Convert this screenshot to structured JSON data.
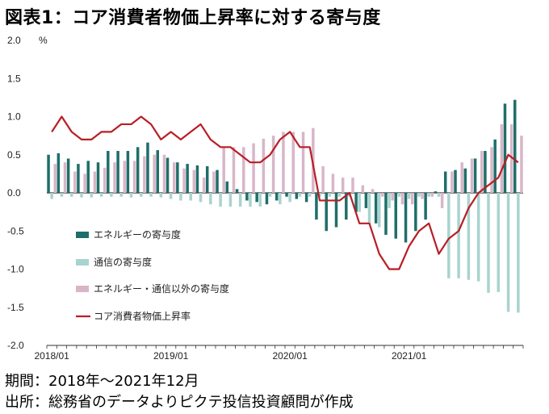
{
  "title": "図表1：コア消費者物価上昇率に対する寄与度",
  "footer": {
    "period": "期間：2018年～2021年12月",
    "source": "出所：総務省のデータよりピクテ投信投資顧問が作成"
  },
  "chart_data": {
    "type": "bar+line",
    "title": "図表1：コア消費者物価上昇率に対する寄与度",
    "ylabel": "%",
    "ylim": [
      -2.0,
      2.0
    ],
    "yticks": [
      "2.0",
      "1.5",
      "1.0",
      "0.5",
      "0.0",
      "-0.5",
      "-1.0",
      "-1.5",
      "-2.0"
    ],
    "x_tick_labels": [
      "2018/01",
      "2019/01",
      "2020/01",
      "2021/01"
    ],
    "x_tick_months": [
      0,
      12,
      24,
      36
    ],
    "months": 48,
    "legend": [
      "エネルギーの寄与度",
      "通信の寄与度",
      "エネルギー・通信以外の寄与度",
      "コア消費者物価上昇率"
    ],
    "colors": {
      "energy": "#1f6e6a",
      "telecom": "#a9d3cf",
      "other": "#d8b6c8",
      "core": "#b81e26",
      "axis": "#333333"
    },
    "series": [
      {
        "name": "エネルギーの寄与度",
        "values": [
          0.5,
          0.52,
          0.45,
          0.38,
          0.42,
          0.4,
          0.55,
          0.55,
          0.55,
          0.6,
          0.66,
          0.56,
          0.46,
          0.4,
          0.38,
          0.36,
          0.35,
          0.3,
          0.15,
          0.05,
          -0.1,
          -0.12,
          -0.15,
          -0.1,
          -0.05,
          -0.08,
          -0.12,
          -0.35,
          -0.5,
          -0.45,
          -0.35,
          -0.25,
          -0.2,
          -0.4,
          -0.55,
          -0.6,
          -0.65,
          -0.5,
          -0.35,
          0.02,
          0.28,
          0.3,
          0.32,
          0.45,
          0.55,
          0.7,
          1.17,
          1.22
        ]
      },
      {
        "name": "通信の寄与度",
        "values": [
          -0.08,
          -0.05,
          -0.05,
          -0.06,
          -0.06,
          -0.05,
          -0.05,
          -0.05,
          -0.06,
          -0.05,
          -0.05,
          -0.06,
          -0.08,
          -0.1,
          -0.1,
          -0.12,
          -0.15,
          -0.18,
          -0.18,
          -0.18,
          -0.18,
          -0.18,
          -0.05,
          -0.15,
          -0.12,
          -0.05,
          -0.05,
          -0.05,
          -0.05,
          -0.05,
          -0.05,
          -0.25,
          -0.4,
          -0.45,
          -0.2,
          -0.05,
          -0.08,
          -0.05,
          -0.05,
          -0.05,
          -1.12,
          -1.12,
          -1.14,
          -1.16,
          -1.31,
          -1.3,
          -1.56,
          -1.57
        ]
      },
      {
        "name": "エネルギー・通信以外の寄与度",
        "values": [
          0.38,
          0.4,
          0.28,
          0.25,
          0.28,
          0.33,
          0.4,
          0.42,
          0.42,
          0.48,
          0.5,
          0.5,
          0.4,
          0.32,
          0.3,
          0.2,
          0.28,
          0.6,
          0.6,
          0.6,
          0.65,
          0.71,
          0.75,
          0.8,
          0.8,
          0.8,
          0.85,
          0.35,
          0.25,
          0.2,
          0.2,
          0.1,
          0.05,
          -0.05,
          -0.1,
          -0.15,
          -0.15,
          -0.08,
          -0.05,
          -0.2,
          0.28,
          0.4,
          0.45,
          0.55,
          0.6,
          0.9,
          0.9,
          0.75
        ]
      },
      {
        "name": "コア消費者物価上昇率",
        "values": [
          0.8,
          1.0,
          0.8,
          0.7,
          0.7,
          0.8,
          0.8,
          0.9,
          0.9,
          1.0,
          0.9,
          0.7,
          0.8,
          0.7,
          0.8,
          0.9,
          0.7,
          0.6,
          0.6,
          0.5,
          0.4,
          0.4,
          0.5,
          0.7,
          0.8,
          0.6,
          0.6,
          -0.1,
          -0.1,
          -0.1,
          0.0,
          -0.4,
          -0.4,
          -0.8,
          -1.0,
          -1.0,
          -0.7,
          -0.5,
          -0.4,
          -0.8,
          -0.6,
          -0.5,
          -0.2,
          0.0,
          0.1,
          0.2,
          0.5,
          0.4
        ]
      }
    ]
  }
}
